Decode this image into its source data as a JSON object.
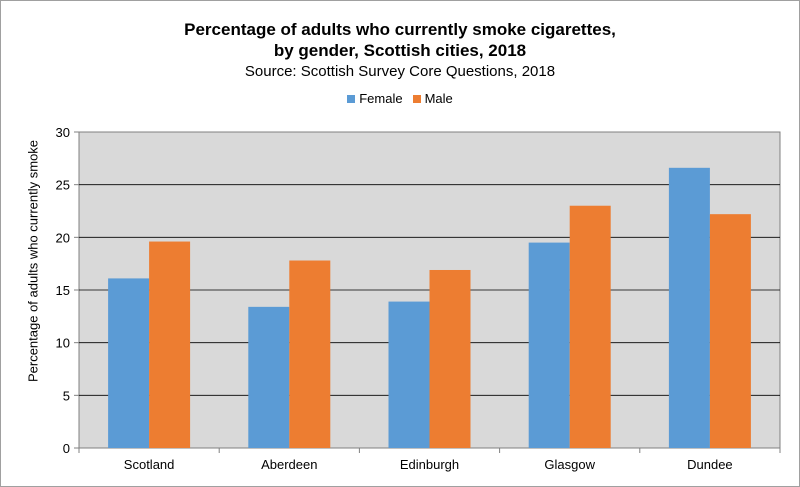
{
  "chart_data": {
    "type": "bar",
    "title_line1": "Percentage of adults who currently smoke cigarettes,",
    "title_line2": "by gender, Scottish cities, 2018",
    "subtitle": "Source: Scottish Survey Core Questions, 2018",
    "xlabel": "",
    "ylabel": "Percentage of adults who currently smoke",
    "categories": [
      "Scotland",
      "Aberdeen",
      "Edinburgh",
      "Glasgow",
      "Dundee"
    ],
    "series": [
      {
        "name": "Female",
        "color": "#5b9bd5",
        "values": [
          16.1,
          13.4,
          13.9,
          19.5,
          26.6
        ]
      },
      {
        "name": "Male",
        "color": "#ed7d31",
        "values": [
          19.6,
          17.8,
          16.9,
          23.0,
          22.2
        ]
      }
    ],
    "ylim": [
      0,
      30
    ],
    "yticks": [
      0,
      5,
      10,
      15,
      20,
      25,
      30
    ],
    "grid": true,
    "legend_position": "top-center",
    "plot_background": "#d9d9d9"
  }
}
